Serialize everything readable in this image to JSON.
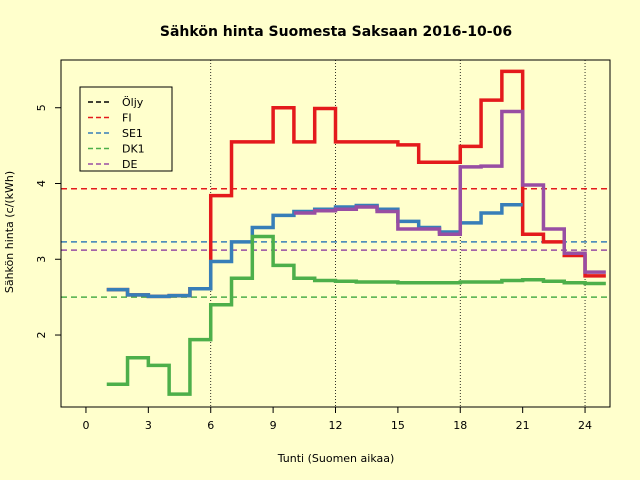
{
  "chart_data": {
    "type": "line",
    "title": "Sähkön hinta Suomesta Saksaan 2016-10-06",
    "xlabel": "Tunti (Suomen aikaa)",
    "ylabel": "Sähkön hinta (c/(kWh)",
    "xlim": [
      -1.2,
      25.2
    ],
    "ylim": [
      1.05,
      5.63
    ],
    "x_ticks": [
      0,
      3,
      6,
      9,
      12,
      15,
      18,
      21,
      24
    ],
    "y_ticks": [
      2,
      3,
      4,
      5
    ],
    "vlines": [
      6,
      12,
      18,
      24
    ],
    "legend_position": "top-left",
    "colors": {
      "oljy": "#000000",
      "fi": "#E41A1C",
      "se1": "#377EB8",
      "dk1": "#4DAF4A",
      "de": "#984EA3"
    },
    "reference_lines": [
      {
        "name": "FI",
        "y": 3.93
      },
      {
        "name": "SE1",
        "y": 3.23
      },
      {
        "name": "DE",
        "y": 3.12
      },
      {
        "name": "DK1",
        "y": 2.5
      }
    ],
    "series": [
      {
        "name": "Öljy",
        "values": []
      },
      {
        "name": "FI",
        "x": [
          1,
          2,
          3,
          4,
          5,
          6,
          7,
          8,
          9,
          10,
          11,
          12,
          13,
          14,
          15,
          16,
          17,
          18,
          19,
          20,
          21,
          22,
          23,
          24,
          25
        ],
        "values": [
          2.6,
          2.53,
          2.51,
          2.52,
          2.61,
          3.84,
          4.55,
          4.55,
          5.0,
          4.55,
          4.99,
          4.55,
          4.55,
          4.55,
          4.51,
          4.28,
          4.28,
          4.49,
          5.1,
          5.48,
          3.33,
          3.23,
          3.05,
          2.78,
          2.78
        ]
      },
      {
        "name": "SE1",
        "x": [
          1,
          2,
          3,
          4,
          5,
          6,
          7,
          8,
          9,
          10,
          11,
          12,
          13,
          14,
          15,
          16,
          17,
          18,
          19,
          20,
          21
        ],
        "values": [
          2.6,
          2.53,
          2.51,
          2.52,
          2.61,
          2.97,
          3.23,
          3.42,
          3.58,
          3.63,
          3.66,
          3.69,
          3.71,
          3.66,
          3.5,
          3.42,
          3.36,
          3.48,
          3.61,
          3.72,
          3.72
        ]
      },
      {
        "name": "DK1",
        "x": [
          1,
          2,
          3,
          4,
          5,
          6,
          7,
          8,
          9,
          10,
          11,
          12,
          13,
          14,
          15,
          16,
          17,
          18,
          19,
          20,
          21,
          22,
          23,
          24,
          25
        ],
        "values": [
          1.35,
          1.7,
          1.6,
          1.22,
          1.94,
          2.4,
          2.75,
          3.3,
          2.92,
          2.75,
          2.72,
          2.71,
          2.7,
          2.7,
          2.69,
          2.69,
          2.69,
          2.7,
          2.7,
          2.72,
          2.73,
          2.71,
          2.69,
          2.68,
          2.68
        ]
      },
      {
        "name": "DE",
        "x": [
          10,
          11,
          12,
          13,
          14,
          15,
          16,
          17,
          18,
          19,
          20,
          21,
          22,
          23,
          24,
          25
        ],
        "values": [
          3.61,
          3.64,
          3.66,
          3.69,
          3.63,
          3.4,
          3.4,
          3.33,
          4.22,
          4.23,
          4.95,
          3.98,
          3.4,
          3.08,
          2.83,
          2.83
        ]
      }
    ]
  },
  "legend": {
    "items": [
      {
        "label": "Öljy",
        "color": "#000000"
      },
      {
        "label": "FI",
        "color": "#E41A1C"
      },
      {
        "label": "SE1",
        "color": "#377EB8"
      },
      {
        "label": "DK1",
        "color": "#4DAF4A"
      },
      {
        "label": "DE",
        "color": "#984EA3"
      }
    ]
  }
}
